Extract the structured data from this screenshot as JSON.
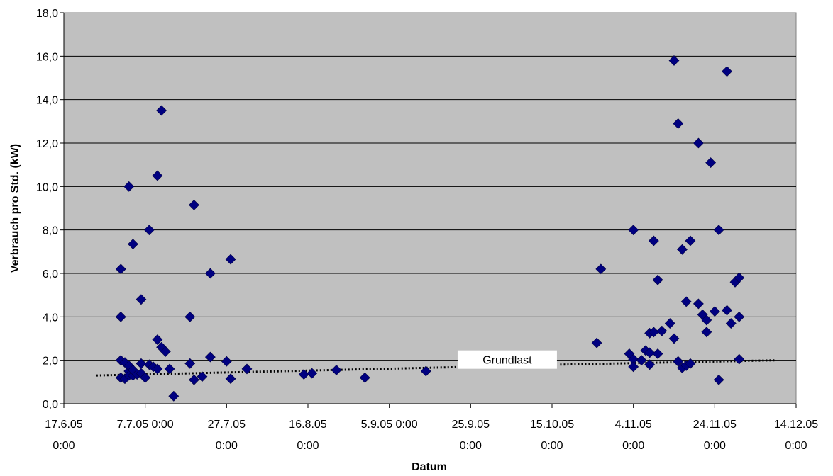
{
  "chart_data": {
    "type": "scatter",
    "title": "",
    "xlabel": "Datum",
    "ylabel": "Verbrauch pro Std. (kW)",
    "x_unit": "date",
    "xlim": [
      "2005-06-17",
      "2005-12-14"
    ],
    "ylim": [
      0,
      18
    ],
    "y_ticks": [
      "0,0",
      "2,0",
      "4,0",
      "6,0",
      "8,0",
      "10,0",
      "12,0",
      "14,0",
      "16,0",
      "18,0"
    ],
    "x_ticks": [
      {
        "date": "2005-06-17",
        "line1": "17.6.05",
        "line2": "0:00"
      },
      {
        "date": "2005-07-07",
        "line1": "7.7.05 0:00",
        "line2": ""
      },
      {
        "date": "2005-07-27",
        "line1": "27.7.05",
        "line2": "0:00"
      },
      {
        "date": "2005-08-16",
        "line1": "16.8.05",
        "line2": "0:00"
      },
      {
        "date": "2005-09-05",
        "line1": "5.9.05 0:00",
        "line2": ""
      },
      {
        "date": "2005-09-25",
        "line1": "25.9.05",
        "line2": "0:00"
      },
      {
        "date": "2005-10-15",
        "line1": "15.10.05",
        "line2": "0:00"
      },
      {
        "date": "2005-11-04",
        "line1": "4.11.05",
        "line2": "0:00"
      },
      {
        "date": "2005-11-24",
        "line1": "24.11.05",
        "line2": "0:00"
      },
      {
        "date": "2005-12-14",
        "line1": "14.12.05",
        "line2": "0:00"
      }
    ],
    "grid": "horizontal",
    "plot_background": "#C0C0C0",
    "marker_color": "#000080",
    "series": [
      {
        "points": [
          [
            "2005-07-01",
            6.2
          ],
          [
            "2005-07-01",
            4.0
          ],
          [
            "2005-07-01",
            2.0
          ],
          [
            "2005-07-01",
            1.2
          ],
          [
            "2005-07-02",
            1.9
          ],
          [
            "2005-07-02",
            1.15
          ],
          [
            "2005-07-03",
            1.5
          ],
          [
            "2005-07-03",
            1.75
          ],
          [
            "2005-07-03",
            1.3
          ],
          [
            "2005-07-03",
            10.0
          ],
          [
            "2005-07-04",
            7.35
          ],
          [
            "2005-07-04",
            1.3
          ],
          [
            "2005-07-04",
            1.55
          ],
          [
            "2005-07-05",
            1.35
          ],
          [
            "2005-07-06",
            1.4
          ],
          [
            "2005-07-06",
            4.8
          ],
          [
            "2005-07-06",
            1.85
          ],
          [
            "2005-07-07",
            1.2
          ],
          [
            "2005-07-08",
            1.8
          ],
          [
            "2005-07-08",
            8.0
          ],
          [
            "2005-07-09",
            1.7
          ],
          [
            "2005-07-10",
            1.6
          ],
          [
            "2005-07-10",
            10.5
          ],
          [
            "2005-07-10",
            2.95
          ],
          [
            "2005-07-11",
            13.5
          ],
          [
            "2005-07-11",
            2.6
          ],
          [
            "2005-07-12",
            2.4
          ],
          [
            "2005-07-13",
            1.6
          ],
          [
            "2005-07-14",
            0.35
          ],
          [
            "2005-07-18",
            1.85
          ],
          [
            "2005-07-18",
            4.0
          ],
          [
            "2005-07-19",
            1.1
          ],
          [
            "2005-07-19",
            9.15
          ],
          [
            "2005-07-21",
            1.25
          ],
          [
            "2005-07-23",
            6.0
          ],
          [
            "2005-07-23",
            2.15
          ],
          [
            "2005-07-27",
            1.95
          ],
          [
            "2005-07-28",
            6.65
          ],
          [
            "2005-07-28",
            1.15
          ],
          [
            "2005-08-01",
            1.6
          ],
          [
            "2005-08-15",
            1.35
          ],
          [
            "2005-08-17",
            1.4
          ],
          [
            "2005-08-23",
            1.55
          ],
          [
            "2005-08-30",
            1.2
          ],
          [
            "2005-09-14",
            1.5
          ],
          [
            "2005-10-26",
            2.8
          ],
          [
            "2005-10-27",
            6.2
          ],
          [
            "2005-11-03",
            2.3
          ],
          [
            "2005-11-04",
            2.05
          ],
          [
            "2005-11-04",
            1.7
          ],
          [
            "2005-11-04",
            8.0
          ],
          [
            "2005-11-06",
            2.0
          ],
          [
            "2005-11-07",
            2.45
          ],
          [
            "2005-11-08",
            1.8
          ],
          [
            "2005-11-08",
            3.25
          ],
          [
            "2005-11-08",
            2.35
          ],
          [
            "2005-11-09",
            7.5
          ],
          [
            "2005-11-09",
            3.3
          ],
          [
            "2005-11-10",
            5.7
          ],
          [
            "2005-11-10",
            2.3
          ],
          [
            "2005-11-11",
            3.35
          ],
          [
            "2005-11-13",
            3.7
          ],
          [
            "2005-11-14",
            15.8
          ],
          [
            "2005-11-14",
            3.0
          ],
          [
            "2005-11-15",
            12.9
          ],
          [
            "2005-11-15",
            1.95
          ],
          [
            "2005-11-16",
            7.1
          ],
          [
            "2005-11-16",
            1.65
          ],
          [
            "2005-11-17",
            4.7
          ],
          [
            "2005-11-17",
            1.75
          ],
          [
            "2005-11-18",
            7.5
          ],
          [
            "2005-11-18",
            1.85
          ],
          [
            "2005-11-20",
            12.0
          ],
          [
            "2005-11-20",
            4.6
          ],
          [
            "2005-11-21",
            4.1
          ],
          [
            "2005-11-22",
            3.85
          ],
          [
            "2005-11-22",
            3.3
          ],
          [
            "2005-11-23",
            11.1
          ],
          [
            "2005-11-24",
            4.25
          ],
          [
            "2005-11-25",
            8.0
          ],
          [
            "2005-11-25",
            1.1
          ],
          [
            "2005-11-27",
            15.3
          ],
          [
            "2005-11-27",
            4.3
          ],
          [
            "2005-11-28",
            3.7
          ],
          [
            "2005-11-29",
            5.6
          ],
          [
            "2005-11-30",
            4.0
          ],
          [
            "2005-11-30",
            2.05
          ],
          [
            "2005-11-30",
            5.8
          ]
        ]
      }
    ],
    "trendlines": [
      {
        "style": "dotted",
        "from": [
          "2005-06-25",
          1.3
        ],
        "to": [
          "2005-09-25",
          1.7
        ]
      },
      {
        "style": "dotted",
        "from": [
          "2005-10-17",
          1.8
        ],
        "to": [
          "2005-12-09",
          2.0
        ]
      }
    ],
    "annotations": [
      {
        "text": "Grundlast",
        "x": "2005-10-04",
        "y": 2.0
      }
    ]
  }
}
